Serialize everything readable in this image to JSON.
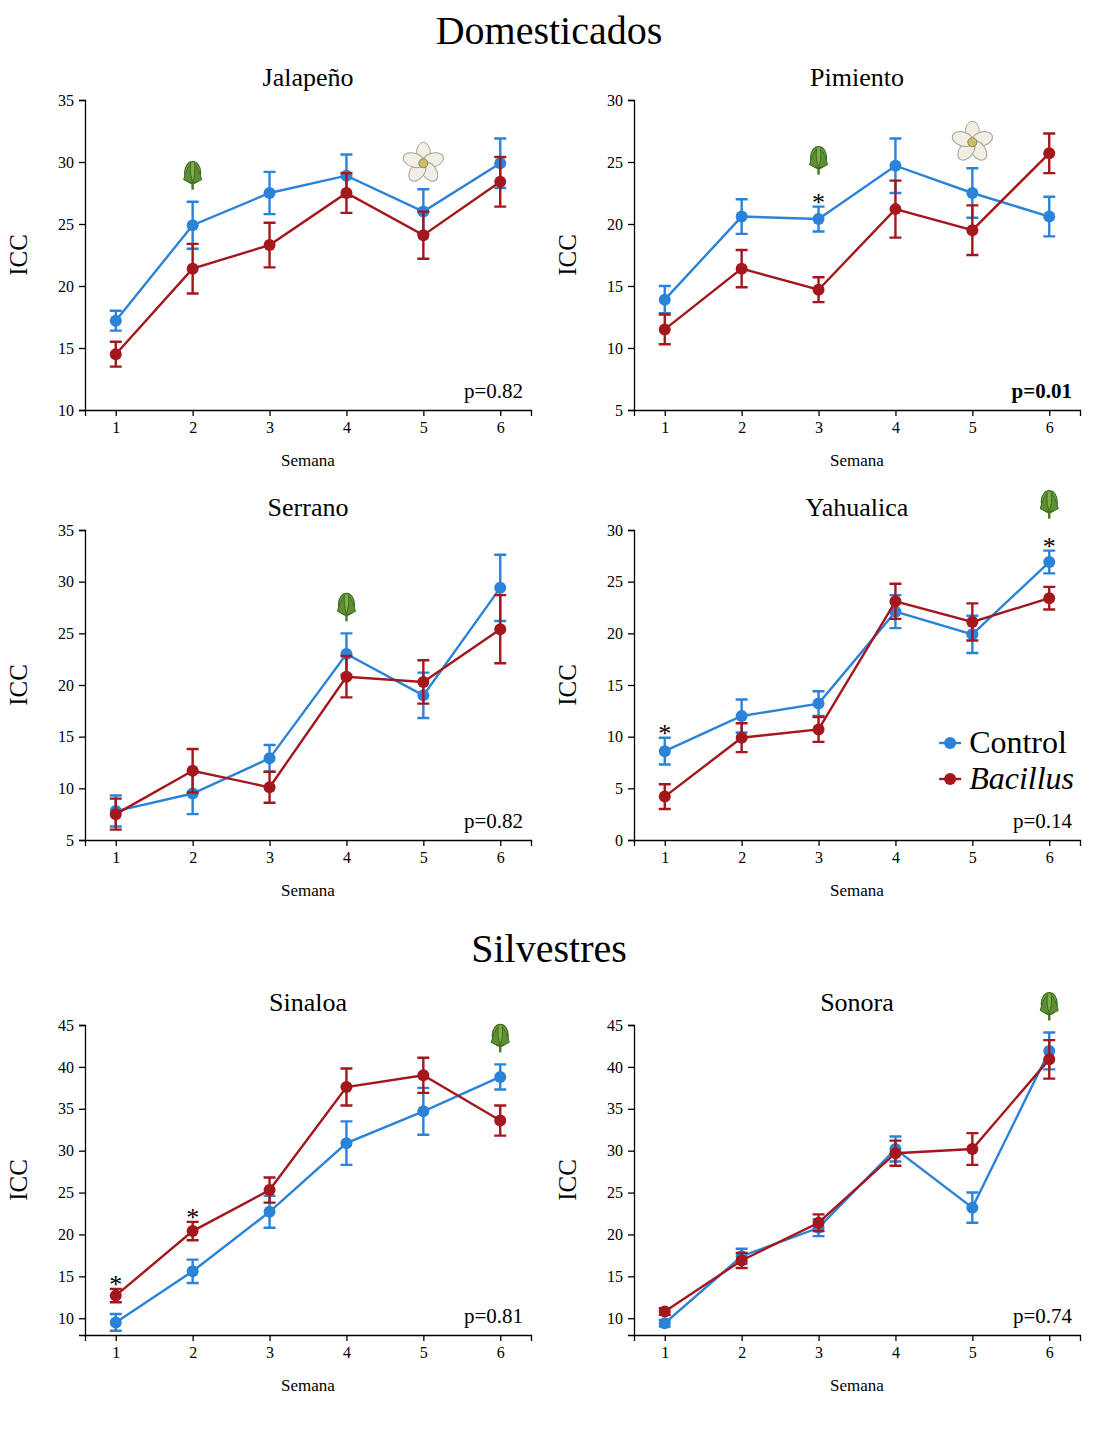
{
  "group_titles": [
    "Domesticados",
    "Silvestres"
  ],
  "chart_data": [
    {
      "type": "line",
      "title": "Jalapeño",
      "x_label": "Semana",
      "y_label": "ICC",
      "x": [
        1,
        2,
        3,
        4,
        5,
        6
      ],
      "xlim": [
        0.6,
        6.4
      ],
      "xticks": [
        1,
        2,
        3,
        4,
        5,
        6
      ],
      "ylim": [
        10,
        35
      ],
      "yticks": [
        10,
        15,
        20,
        25,
        30,
        35
      ],
      "grid": false,
      "series": [
        {
          "name": "Control",
          "color": "#2b83d9",
          "marker": "circle",
          "values": [
            17.2,
            24.9,
            27.5,
            28.9,
            26.0,
            29.9
          ],
          "errors": [
            0.8,
            1.9,
            1.7,
            1.7,
            1.8,
            2.0
          ]
        },
        {
          "name": "Bacillus",
          "color": "#a3171d",
          "marker": "circle",
          "values": [
            14.5,
            21.4,
            23.3,
            27.5,
            24.1,
            28.4
          ],
          "errors": [
            1.0,
            2.0,
            1.8,
            1.6,
            1.9,
            2.0
          ]
        }
      ],
      "annotations": [
        {
          "x": 2,
          "marker": "bud"
        },
        {
          "x": 5,
          "marker": "flower"
        }
      ],
      "p_value": {
        "value": 0.82,
        "label": "p=0.82"
      }
    },
    {
      "type": "line",
      "title": "Pimiento",
      "x_label": "Semana",
      "y_label": "ICC",
      "x": [
        1,
        2,
        3,
        4,
        5,
        6
      ],
      "xlim": [
        0.6,
        6.4
      ],
      "xticks": [
        1,
        2,
        3,
        4,
        5,
        6
      ],
      "ylim": [
        5,
        30
      ],
      "yticks": [
        5,
        10,
        15,
        20,
        25,
        30
      ],
      "grid": false,
      "series": [
        {
          "name": "Control",
          "color": "#2b83d9",
          "marker": "circle",
          "values": [
            13.9,
            20.6,
            20.4,
            24.7,
            22.5,
            20.6
          ],
          "errors": [
            1.1,
            1.4,
            1.0,
            2.2,
            2.0,
            1.6
          ]
        },
        {
          "name": "Bacillus",
          "color": "#a3171d",
          "marker": "circle",
          "values": [
            11.5,
            16.4,
            14.7,
            21.2,
            19.5,
            25.7
          ],
          "errors": [
            1.2,
            1.5,
            1.0,
            2.3,
            2.0,
            1.6
          ]
        }
      ],
      "annotations": [
        {
          "x": 3,
          "text": "*"
        },
        {
          "x": 3,
          "marker": "bud"
        },
        {
          "x": 5,
          "marker": "flower"
        }
      ],
      "p_value": {
        "value": 0.01,
        "label": "p=0.01"
      }
    },
    {
      "type": "line",
      "title": "Serrano",
      "x_label": "Semana",
      "y_label": "ICC",
      "x": [
        1,
        2,
        3,
        4,
        5,
        6
      ],
      "xlim": [
        0.6,
        6.4
      ],
      "xticks": [
        1,
        2,
        3,
        4,
        5,
        6
      ],
      "ylim": [
        5,
        35
      ],
      "yticks": [
        5,
        10,
        15,
        20,
        25,
        30,
        35
      ],
      "grid": false,
      "series": [
        {
          "name": "Control",
          "color": "#2b83d9",
          "marker": "circle",
          "values": [
            7.8,
            9.5,
            12.9,
            23.0,
            19.0,
            29.4
          ],
          "errors": [
            1.5,
            2.0,
            1.3,
            2.0,
            2.2,
            3.2
          ]
        },
        {
          "name": "Bacillus",
          "color": "#a3171d",
          "marker": "circle",
          "values": [
            7.5,
            11.7,
            10.1,
            20.8,
            20.3,
            25.4
          ],
          "errors": [
            1.5,
            2.1,
            1.5,
            2.0,
            2.1,
            3.3
          ]
        }
      ],
      "annotations": [
        {
          "x": 4,
          "marker": "bud"
        }
      ],
      "p_value": {
        "value": 0.82,
        "label": "p=0.82"
      }
    },
    {
      "type": "line",
      "title": "Yahualica",
      "x_label": "Semana",
      "y_label": "ICC",
      "x": [
        1,
        2,
        3,
        4,
        5,
        6
      ],
      "xlim": [
        0.6,
        6.4
      ],
      "xticks": [
        1,
        2,
        3,
        4,
        5,
        6
      ],
      "ylim": [
        0,
        30
      ],
      "yticks": [
        0,
        5,
        10,
        15,
        20,
        25,
        30
      ],
      "grid": false,
      "legend": "lower right",
      "series": [
        {
          "name": "Control",
          "color": "#2b83d9",
          "marker": "circle",
          "values": [
            8.6,
            12.0,
            13.2,
            22.1,
            19.9,
            26.9
          ],
          "errors": [
            1.3,
            1.6,
            1.2,
            1.6,
            1.8,
            1.1
          ]
        },
        {
          "name": "Bacillus",
          "color": "#a3171d",
          "marker": "circle",
          "values": [
            4.2,
            9.9,
            10.7,
            23.1,
            21.1,
            23.4
          ],
          "errors": [
            1.2,
            1.4,
            1.2,
            1.7,
            1.8,
            1.1
          ]
        }
      ],
      "annotations": [
        {
          "x": 1,
          "text": "*"
        },
        {
          "x": 6,
          "text": "*"
        },
        {
          "x": 6,
          "marker": "bud"
        }
      ],
      "p_value": {
        "value": 0.14,
        "label": "p=0.14"
      }
    },
    {
      "type": "line",
      "title": "Sinaloa",
      "x_label": "Semana",
      "y_label": "ICC",
      "x": [
        1,
        2,
        3,
        4,
        5,
        6
      ],
      "xlim": [
        0.6,
        6.4
      ],
      "xticks": [
        1,
        2,
        3,
        4,
        5,
        6
      ],
      "ylim": [
        8,
        45
      ],
      "yticks": [
        10,
        15,
        20,
        25,
        30,
        35,
        40,
        45
      ],
      "grid": false,
      "series": [
        {
          "name": "Control",
          "color": "#2b83d9",
          "marker": "circle",
          "values": [
            9.5,
            15.6,
            22.7,
            30.9,
            34.7,
            38.8
          ],
          "errors": [
            1.0,
            1.4,
            1.9,
            2.6,
            2.8,
            1.5
          ]
        },
        {
          "name": "Bacillus",
          "color": "#a3171d",
          "marker": "circle",
          "values": [
            12.7,
            20.4,
            25.3,
            37.6,
            39.0,
            33.6
          ],
          "errors": [
            0.8,
            1.1,
            1.5,
            2.2,
            2.1,
            1.8
          ]
        }
      ],
      "annotations": [
        {
          "x": 1,
          "text": "*"
        },
        {
          "x": 2,
          "text": "*"
        },
        {
          "x": 6,
          "marker": "bud"
        }
      ],
      "p_value": {
        "value": 0.81,
        "label": "p=0.81"
      }
    },
    {
      "type": "line",
      "title": "Sonora",
      "x_label": "Semana",
      "y_label": "ICC",
      "x": [
        1,
        2,
        3,
        4,
        5,
        6
      ],
      "xlim": [
        0.6,
        6.4
      ],
      "xticks": [
        1,
        2,
        3,
        4,
        5,
        6
      ],
      "ylim": [
        8,
        45
      ],
      "yticks": [
        10,
        15,
        20,
        25,
        30,
        35,
        40,
        45
      ],
      "grid": false,
      "series": [
        {
          "name": "Control",
          "color": "#2b83d9",
          "marker": "circle",
          "values": [
            9.4,
            17.4,
            20.8,
            30.2,
            23.2,
            41.9
          ],
          "errors": [
            0.4,
            0.9,
            1.0,
            1.5,
            1.8,
            2.2
          ]
        },
        {
          "name": "Bacillus",
          "color": "#a3171d",
          "marker": "circle",
          "values": [
            10.8,
            16.9,
            21.4,
            29.7,
            30.2,
            40.9
          ],
          "errors": [
            0.4,
            0.9,
            1.0,
            1.5,
            1.9,
            2.3
          ]
        }
      ],
      "annotations": [
        {
          "x": 6,
          "marker": "bud"
        }
      ],
      "p_value": {
        "value": 0.74,
        "label": "p=0.74"
      }
    }
  ]
}
